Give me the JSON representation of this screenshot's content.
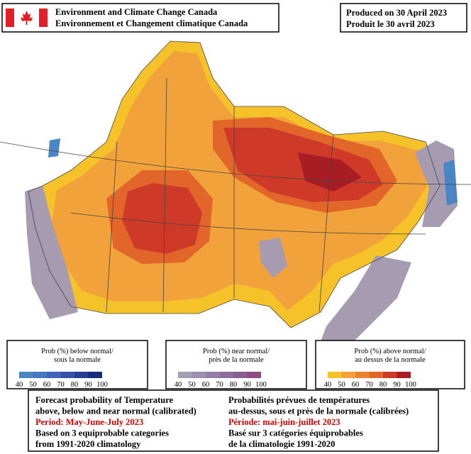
{
  "header": {
    "agency_en": "Environment and Climate Change Canada",
    "agency_fr": "Environnement et Changement climatique Canada",
    "produced_en": "Produced on 30 April 2023",
    "produced_fr": "Produit le 30 avril 2023"
  },
  "legends": [
    {
      "title_en": "Prob (%) below normal/",
      "title_fr": "sous la normale",
      "ticks": [
        40,
        50,
        60,
        70,
        80,
        90,
        100
      ]
    },
    {
      "title_en": "Prob (%) near normal/",
      "title_fr": "près de la normale",
      "ticks": [
        40,
        50,
        60,
        70,
        80,
        90,
        100
      ]
    },
    {
      "title_en": "Prob (%) above normal/",
      "title_fr": "au dessus de la normale",
      "ticks": [
        40,
        50,
        60,
        70,
        80,
        90,
        100
      ]
    }
  ],
  "footer": {
    "left": [
      "Forecast probability of Temperature",
      "above, below and near normal (calibrated)",
      "Period: May-June-July 2023",
      "Based on 3 equiprobable categories",
      " from 1991-2020 climatology"
    ],
    "right": [
      "Probabilités prévues de températures",
      "au-dessus, sous et près de la normale (calibrées)",
      "Période: mai-juin-juillet 2023",
      "Basé sur 3 catégories équiprobables",
      "de la climatologie 1991-2020"
    ]
  }
}
